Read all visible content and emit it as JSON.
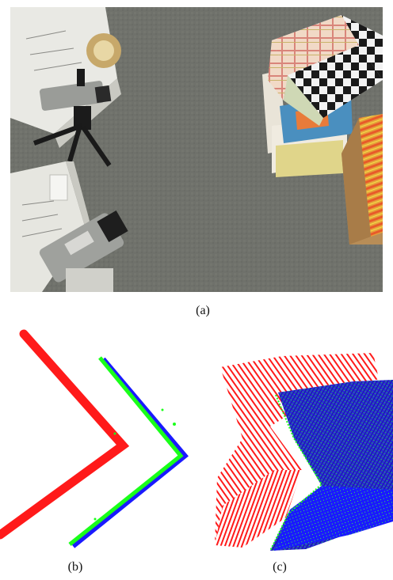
{
  "figure": {
    "captions": {
      "a": "(a)",
      "b": "(b)",
      "c": "(c)"
    },
    "panels": {
      "a": {
        "content": "photo",
        "objects": [
          "projector-top",
          "camera-top",
          "tripod",
          "projector-bottom",
          "camera-bottom",
          "checkerboard-cube",
          "stacked-boxes",
          "cardboard-box"
        ]
      },
      "b": {
        "content": "top-view-cross-sections",
        "series_colors": [
          "#ff1a1a",
          "#1aff1a",
          "#1a1aff"
        ]
      },
      "c": {
        "content": "3d-point-clouds",
        "series_colors": [
          "#ff1a1a",
          "#1aff1a",
          "#1a1aff"
        ]
      }
    }
  }
}
